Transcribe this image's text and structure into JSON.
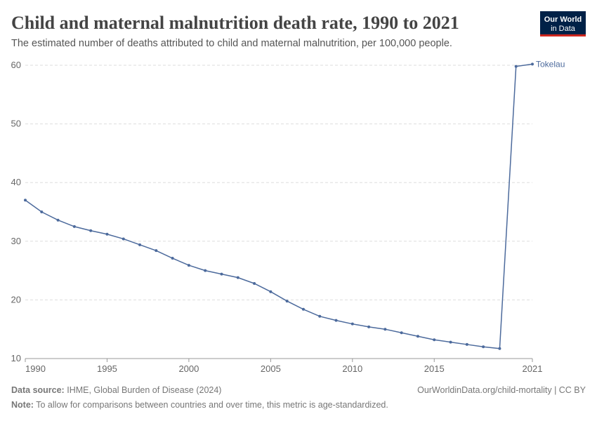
{
  "logo": {
    "line1": "Our World",
    "line2": "in Data"
  },
  "chart_data": {
    "type": "line",
    "title": "Child and maternal malnutrition death rate, 1990 to 2021",
    "subtitle": "The estimated number of deaths attributed to child and maternal malnutrition, per 100,000 people.",
    "x": [
      1990,
      1991,
      1992,
      1993,
      1994,
      1995,
      1996,
      1997,
      1998,
      1999,
      2000,
      2001,
      2002,
      2003,
      2004,
      2005,
      2006,
      2007,
      2008,
      2009,
      2010,
      2011,
      2012,
      2013,
      2014,
      2015,
      2016,
      2017,
      2018,
      2019,
      2020,
      2021
    ],
    "series": [
      {
        "name": "Tokelau",
        "color": "#4c6a9c",
        "values": [
          37.0,
          35.0,
          33.6,
          32.5,
          31.8,
          31.2,
          30.4,
          29.4,
          28.4,
          27.1,
          25.9,
          25.0,
          24.4,
          23.8,
          22.8,
          21.4,
          19.8,
          18.4,
          17.2,
          16.5,
          15.9,
          15.4,
          15.0,
          14.4,
          13.8,
          13.2,
          12.8,
          12.4,
          12.0,
          11.7,
          59.8,
          60.2
        ]
      }
    ],
    "xlim": [
      1990,
      2021
    ],
    "xticks": [
      1990,
      1995,
      2000,
      2005,
      2010,
      2015,
      2021
    ],
    "ylim": [
      10,
      60
    ],
    "yticks": [
      10,
      20,
      30,
      40,
      50,
      60
    ],
    "grid": true
  },
  "footer": {
    "source_label": "Data source:",
    "source": "IHME, Global Burden of Disease (2024)",
    "link": "OurWorldinData.org/child-mortality | CC BY",
    "note_label": "Note:",
    "note": "To allow for comparisons between countries and over time, this metric is age-standardized."
  }
}
